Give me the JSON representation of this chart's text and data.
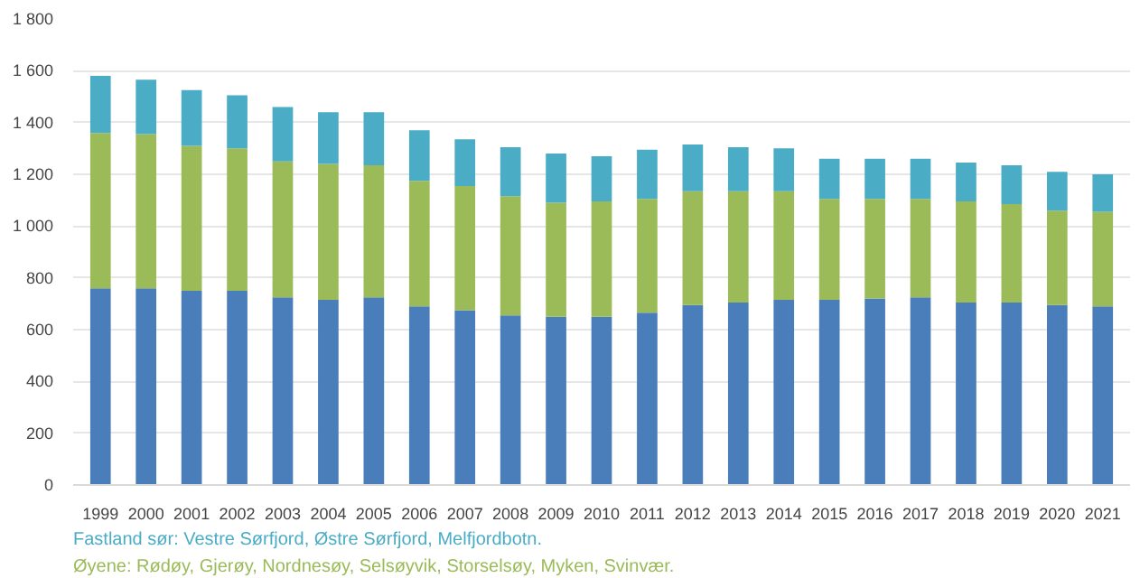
{
  "chart_data": {
    "type": "bar",
    "stacked": true,
    "categories": [
      "1999",
      "2000",
      "2001",
      "2002",
      "2003",
      "2004",
      "2005",
      "2006",
      "2007",
      "2008",
      "2009",
      "2010",
      "2011",
      "2012",
      "2013",
      "2014",
      "2015",
      "2016",
      "2017",
      "2018",
      "2019",
      "2020",
      "2021"
    ],
    "series": [
      {
        "color": "#4a7ebb",
        "values": [
          760,
          760,
          750,
          750,
          725,
          715,
          725,
          690,
          675,
          655,
          650,
          650,
          665,
          695,
          705,
          715,
          715,
          720,
          725,
          705,
          705,
          695,
          690
        ]
      },
      {
        "name": "Øyene: Rødøy, Gjerøy, Nordnesøy, Selsøyvik, Storselsøy, Myken, Svinvær.",
        "color": "#9bbb59",
        "values": [
          600,
          595,
          560,
          550,
          525,
          525,
          510,
          485,
          480,
          460,
          440,
          445,
          440,
          440,
          430,
          420,
          390,
          385,
          380,
          390,
          380,
          365,
          365
        ]
      },
      {
        "name": "Fastland sør: Vestre Sørfjord, Østre Sørfjord, Melfjordbotn.",
        "color": "#4bacc6",
        "values": [
          220,
          210,
          215,
          205,
          210,
          200,
          205,
          195,
          180,
          190,
          190,
          175,
          190,
          180,
          170,
          165,
          155,
          155,
          155,
          150,
          150,
          150,
          145
        ]
      }
    ],
    "ylim": [
      0,
      1800
    ],
    "yticks": [
      {
        "value": 0,
        "label": "0"
      },
      {
        "value": 200,
        "label": "200"
      },
      {
        "value": 400,
        "label": "400"
      },
      {
        "value": 600,
        "label": "600"
      },
      {
        "value": 800,
        "label": "800"
      },
      {
        "value": 1000,
        "label": "1 000"
      },
      {
        "value": 1200,
        "label": "1 200"
      },
      {
        "value": 1400,
        "label": "1 400"
      },
      {
        "value": 1600,
        "label": "1 600"
      },
      {
        "value": 1800,
        "label": "1 800"
      }
    ],
    "grid": "y"
  }
}
